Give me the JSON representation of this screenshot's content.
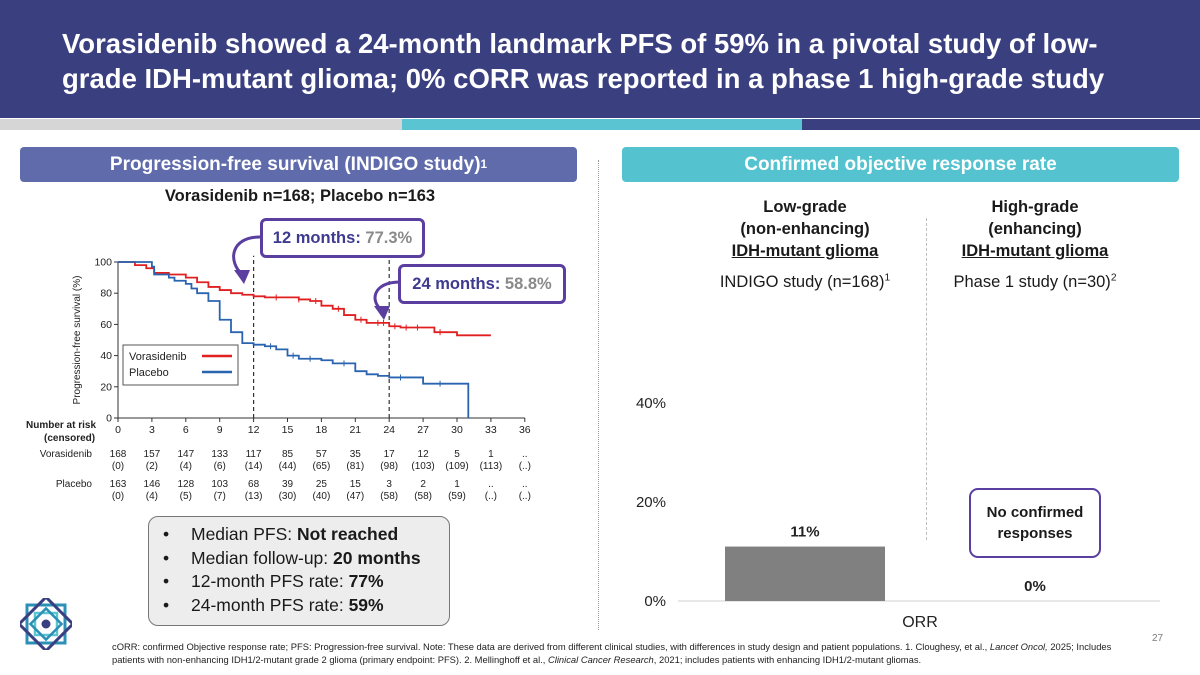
{
  "header": {
    "title": "Vorasidenib showed a 24-month landmark PFS of 59% in a pivotal study of low-grade IDH-mutant glioma; 0% cORR was reported in a phase 1 high-grade study"
  },
  "colors": {
    "navy": "#3a3f7f",
    "left_panel": "#5f6bab",
    "right_panel": "#55c2cf",
    "vorasidenib": "#e02020",
    "placebo": "#2a64b0",
    "callout_border": "#5b3fa0",
    "bar": "#808080"
  },
  "left_panel": {
    "title": "Progression-free survival (INDIGO study)",
    "title_ref": "1",
    "subtitle": "Vorasidenib n=168; Placebo n=163",
    "callout_12": {
      "label": "12 months:",
      "value": "77.3%"
    },
    "callout_24": {
      "label": "24 months:",
      "value": "58.8%"
    },
    "summary": [
      {
        "label": "Median PFS: ",
        "value": "Not reached"
      },
      {
        "label": "Median follow-up: ",
        "value": "20 months"
      },
      {
        "label": "12-month PFS rate: ",
        "value": "77%"
      },
      {
        "label": "24-month PFS rate: ",
        "value": "59%"
      }
    ]
  },
  "km_chart": {
    "y_label": "Progression-free survival (%)",
    "y_ticks": [
      "0",
      "20",
      "40",
      "60",
      "80",
      "100"
    ],
    "x_ticks": [
      "0",
      "3",
      "6",
      "9",
      "12",
      "15",
      "18",
      "21",
      "24",
      "27",
      "30",
      "33",
      "36"
    ],
    "legend": [
      {
        "name": "Vorasidenib",
        "color": "#e02020"
      },
      {
        "name": "Placebo",
        "color": "#2a64b0"
      }
    ],
    "risk_title": "Number at risk",
    "risk_subtitle": "(censored)",
    "risk_rows": [
      {
        "label": "Vorasidenib",
        "counts": [
          "168",
          "157",
          "147",
          "133",
          "117",
          "85",
          "57",
          "35",
          "17",
          "12",
          "5",
          "1",
          ".."
        ],
        "censored": [
          "(0)",
          "(2)",
          "(4)",
          "(6)",
          "(14)",
          "(44)",
          "(65)",
          "(81)",
          "(98)",
          "(103)",
          "(109)",
          "(113)",
          "(..)"
        ]
      },
      {
        "label": "Placebo",
        "counts": [
          "163",
          "146",
          "128",
          "103",
          "68",
          "39",
          "25",
          "15",
          "3",
          "2",
          "1",
          "..",
          ".."
        ],
        "censored": [
          "(0)",
          "(4)",
          "(5)",
          "(7)",
          "(13)",
          "(30)",
          "(40)",
          "(47)",
          "(58)",
          "(58)",
          "(59)",
          "(..)",
          "(..)"
        ]
      }
    ]
  },
  "chart_data": {
    "type": "bar",
    "categories": [
      "Low-grade (non-enhancing) IDH-mutant glioma",
      "High-grade (enhancing) IDH-mutant glioma"
    ],
    "x_label": "ORR",
    "values": [
      11,
      0
    ],
    "value_labels": [
      "11%",
      "0%"
    ],
    "y_ticks": [
      "0%",
      "20%",
      "40%"
    ],
    "ylim": [
      0,
      40
    ]
  },
  "right_panel": {
    "title": "Confirmed objective response rate",
    "low": {
      "line1": "Low-grade",
      "line2": "(non-enhancing)",
      "line3": "IDH-mutant glioma",
      "study": "INDIGO study (n=168)",
      "ref": "1"
    },
    "high": {
      "line1": "High-grade",
      "line2": "(enhancing)",
      "line3": "IDH-mutant glioma",
      "study": "Phase 1 study (n=30)",
      "ref": "2"
    },
    "no_response_box": "No confirmed responses"
  },
  "footnote": {
    "part1": "cORR: confirmed Objective response rate; PFS: Progression-free survival. Note: These data are derived from different clinical studies, with differences in study design and patient populations. 1. Cloughesy, et al., ",
    "journal1": "Lancet Oncol,",
    "part2": " 2025; Includes patients with non-enhancing IDH1/2-mutant grade 2 glioma (primary endpoint: PFS). 2. Mellinghoff et al., ",
    "journal2": "Clinical Cancer Research",
    "part3": ", 2021; includes patients with enhancing IDH1/2-mutant gliomas."
  },
  "page_number": "27"
}
